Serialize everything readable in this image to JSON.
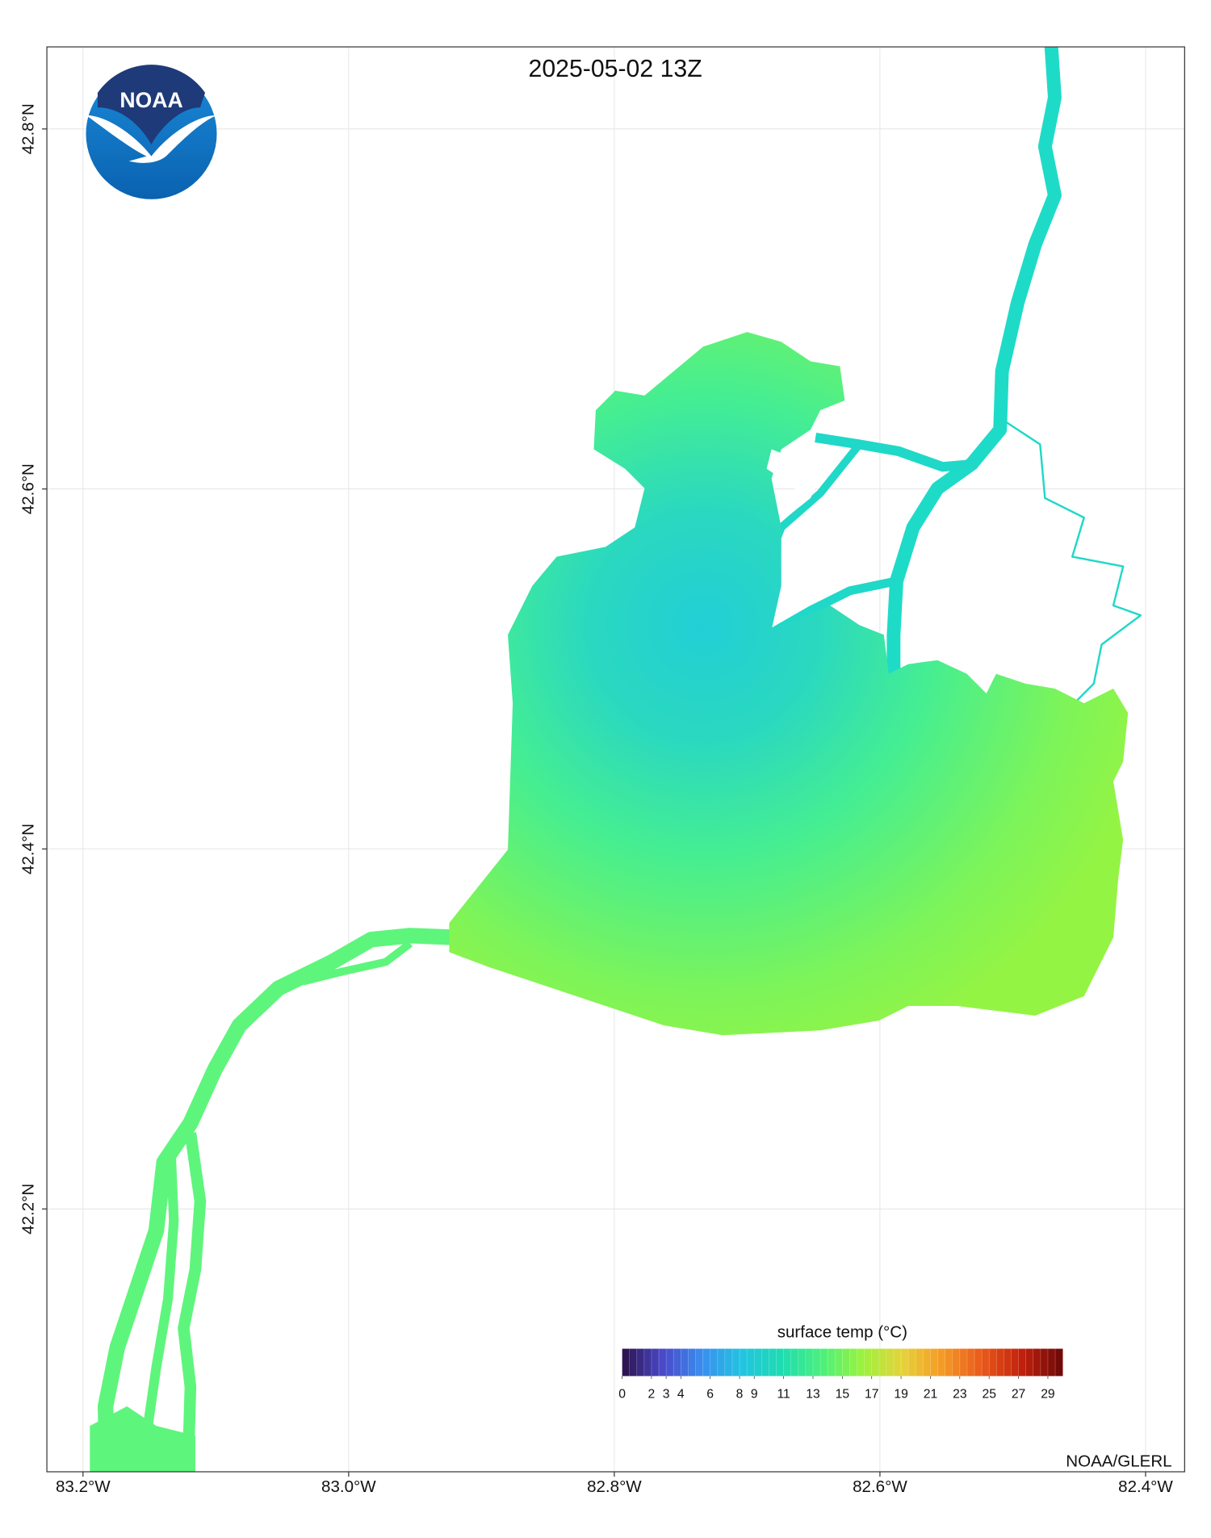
{
  "title": "2025-05-02 13Z",
  "credit": "NOAA/GLERL",
  "logo": {
    "text": "NOAA"
  },
  "chart_data": {
    "type": "map",
    "xlim": [
      -83.2272,
      -82.3706
    ],
    "ylim": [
      42.054,
      42.8456
    ],
    "xticks": [
      {
        "value": -83.2,
        "label": "83.2°W"
      },
      {
        "value": -83.0,
        "label": "83.0°W"
      },
      {
        "value": -82.8,
        "label": "82.8°W"
      },
      {
        "value": -82.6,
        "label": "82.6°W"
      },
      {
        "value": -82.4,
        "label": "82.4°W"
      }
    ],
    "yticks": [
      {
        "value": 42.2,
        "label": "42.2°N"
      },
      {
        "value": 42.4,
        "label": "42.4°N"
      },
      {
        "value": 42.6,
        "label": "42.6°N"
      },
      {
        "value": 42.8,
        "label": "42.8°N"
      }
    ],
    "grid": true,
    "colorbar": {
      "label": "surface temp (°C)",
      "lim": [
        0,
        30
      ],
      "ticks": [
        0,
        2,
        3,
        4,
        6,
        8,
        9,
        11,
        13,
        15,
        17,
        19,
        21,
        23,
        25,
        27,
        29
      ],
      "colors": [
        "#2a1048",
        "#4a48c8",
        "#3a8ef0",
        "#22c4e0",
        "#1fdcb0",
        "#4cf07c",
        "#9cf23e",
        "#e6d23a",
        "#f49a26",
        "#e8581a",
        "#c0200c",
        "#6a0808"
      ]
    }
  }
}
